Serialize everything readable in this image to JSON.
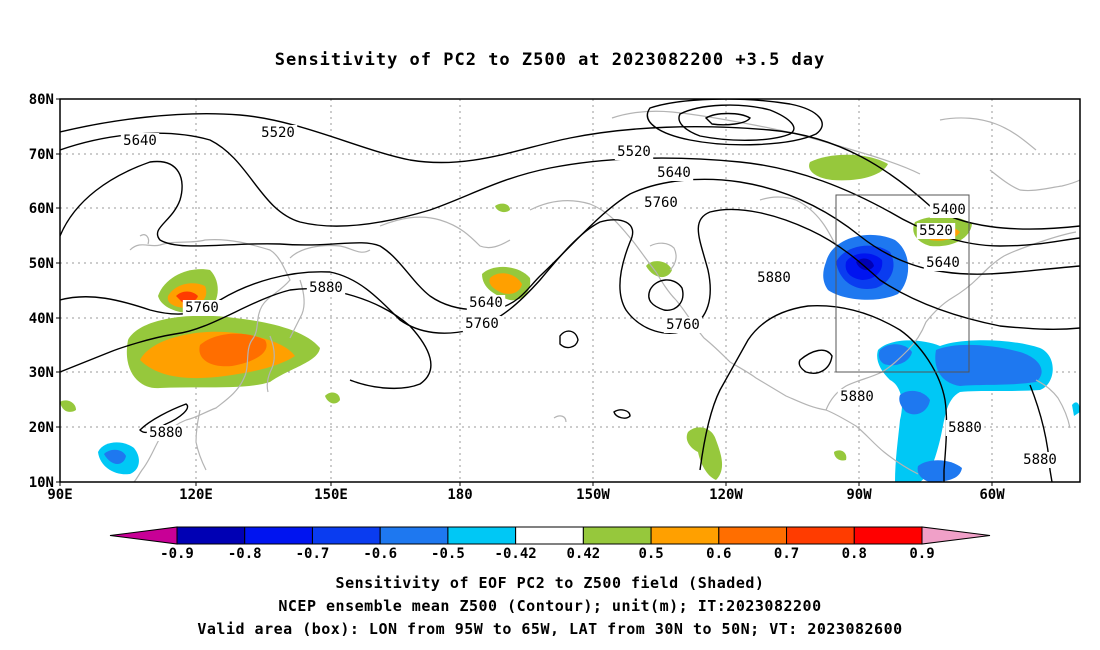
{
  "title": "Sensitivity of PC2 to Z500 at 2023082200 +3.5 day",
  "map": {
    "lat_labels": [
      "80N",
      "70N",
      "60N",
      "50N",
      "40N",
      "30N",
      "20N",
      "10N"
    ],
    "lon_labels": [
      "90E",
      "120E",
      "150E",
      "180",
      "150W",
      "120W",
      "90W",
      "60W"
    ],
    "contour_labels": [
      "5520",
      "5640",
      "5520",
      "5640",
      "5760",
      "5400",
      "5520",
      "5640",
      "5880",
      "5880",
      "5760",
      "5640",
      "5760",
      "5760",
      "5880",
      "5880",
      "5880",
      "5880"
    ],
    "valid_box": {
      "lon_min": "95W",
      "lon_max": "65W",
      "lat_min": "30N",
      "lat_max": "50N"
    }
  },
  "colorbar": {
    "labels": [
      "-0.9",
      "-0.8",
      "-0.7",
      "-0.6",
      "-0.5",
      "-0.42",
      "0.42",
      "0.5",
      "0.6",
      "0.7",
      "0.8",
      "0.9"
    ],
    "colors": [
      "#0000b4",
      "#0014f0",
      "#0a3cf0",
      "#1e78f0",
      "#00c8f5",
      "#ffffff",
      "#96c83c",
      "#ffa000",
      "#ff6e00",
      "#ff3c00",
      "#ff0000"
    ],
    "under_color": "#c80096",
    "over_color": "#f0a0c8"
  },
  "captions": [
    "Sensitivity of EOF PC2 to Z500 field (Shaded)",
    "NCEP ensemble mean Z500 (Contour); unit(m); IT:2023082200",
    "Valid area (box): LON from 95W to 65W, LAT from 30N to 50N; VT: 2023082600"
  ]
}
